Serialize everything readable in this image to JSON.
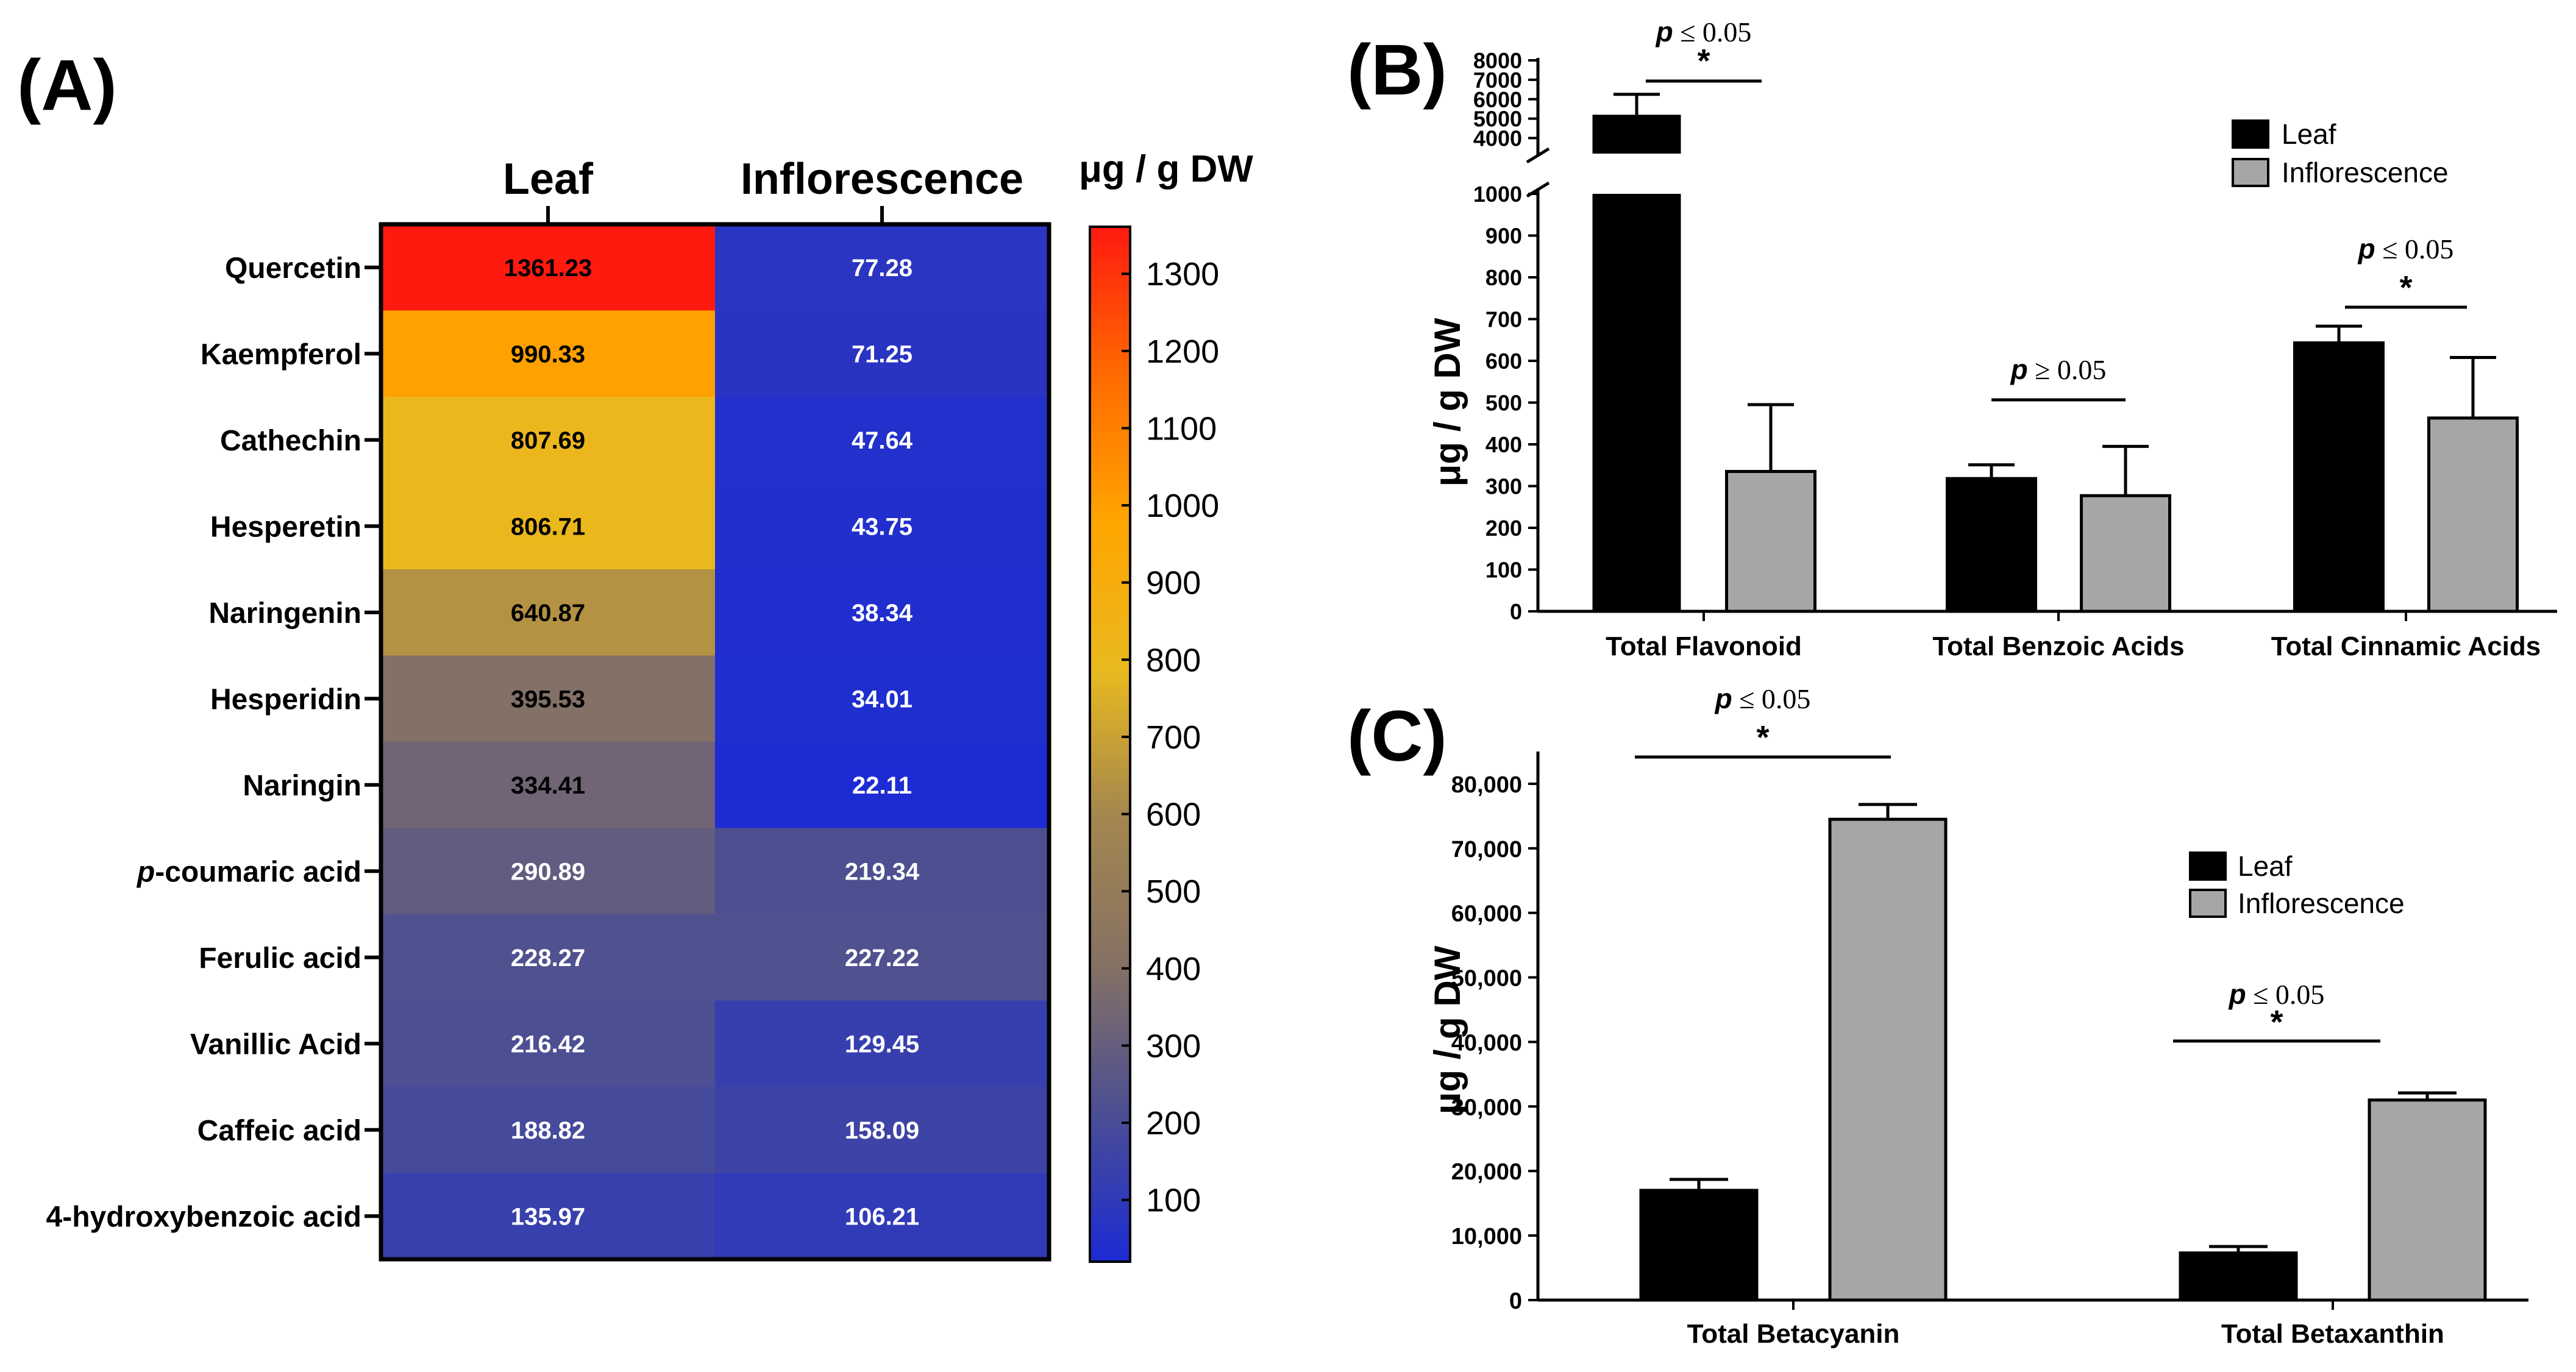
{
  "panel_labels": {
    "a": "(A)",
    "b": "(B)",
    "c": "(C)"
  },
  "chart_data": [
    {
      "type": "heatmap",
      "panel": "(A)",
      "columns": [
        "Leaf",
        "Inflorescence"
      ],
      "rows": [
        "Quercetin",
        "Kaempferol",
        "Cathechin",
        "Hesperetin",
        "Naringenin",
        "Hesperidin",
        "Naringin",
        "p-coumaric acid",
        "Ferulic acid",
        "Vanillic Acid",
        "Caffeic acid",
        "4-hydroxybenzoic acid"
      ],
      "row_label_parts": [
        {
          "prefix": "",
          "rest": "Quercetin"
        },
        {
          "prefix": "",
          "rest": "Kaempferol"
        },
        {
          "prefix": "",
          "rest": "Cathechin"
        },
        {
          "prefix": "",
          "rest": "Hesperetin"
        },
        {
          "prefix": "",
          "rest": "Naringenin"
        },
        {
          "prefix": "",
          "rest": "Hesperidin"
        },
        {
          "prefix": "",
          "rest": "Naringin"
        },
        {
          "prefix": "p",
          "rest": "-coumaric acid"
        },
        {
          "prefix": "",
          "rest": "Ferulic acid"
        },
        {
          "prefix": "",
          "rest": "Vanillic Acid"
        },
        {
          "prefix": "",
          "rest": "Caffeic acid"
        },
        {
          "prefix": "",
          "rest": "4-hydroxybenzoic acid"
        }
      ],
      "values": [
        [
          1361.23,
          77.28
        ],
        [
          990.33,
          71.25
        ],
        [
          807.69,
          47.64
        ],
        [
          806.71,
          43.75
        ],
        [
          640.87,
          38.34
        ],
        [
          395.53,
          34.01
        ],
        [
          334.41,
          22.11
        ],
        [
          290.89,
          219.34
        ],
        [
          228.27,
          227.22
        ],
        [
          216.42,
          129.45
        ],
        [
          188.82,
          158.09
        ],
        [
          135.97,
          106.21
        ]
      ],
      "value_labels": [
        [
          "1361.23",
          "77.28"
        ],
        [
          "990.33",
          "71.25"
        ],
        [
          "807.69",
          "47.64"
        ],
        [
          "806.71",
          "43.75"
        ],
        [
          "640.87",
          "38.34"
        ],
        [
          "395.53",
          "34.01"
        ],
        [
          "334.41",
          "22.11"
        ],
        [
          "290.89",
          "219.34"
        ],
        [
          "228.27",
          "227.22"
        ],
        [
          "216.42",
          "129.45"
        ],
        [
          "188.82",
          "158.09"
        ],
        [
          "135.97",
          "106.21"
        ]
      ],
      "colorbar": {
        "title": "μg / g DW",
        "range": [
          20,
          1361
        ],
        "ticks": [
          100,
          200,
          300,
          400,
          500,
          600,
          700,
          800,
          900,
          1000,
          1100,
          1200,
          1300
        ],
        "tick_labels": [
          "100",
          "200",
          "300",
          "400",
          "500",
          "600",
          "700",
          "800",
          "900",
          "1000",
          "1100",
          "1200",
          "1300"
        ],
        "colors": [
          "#1c2bd4",
          "#4b4e93",
          "#857164",
          "#a3864f",
          "#e8b91f",
          "#ffa500",
          "#ff6a00",
          "#ff1a10"
        ]
      }
    },
    {
      "type": "bar",
      "panel": "(B)",
      "categories": [
        "Total Flavonoid",
        "Total Benzoic Acids",
        "Total Cinnamic Acids"
      ],
      "series": [
        {
          "name": "Leaf",
          "color": "#000000",
          "values": [
            5200,
            318,
            643
          ],
          "errors": [
            1050,
            33,
            40
          ]
        },
        {
          "name": "Inflorescence",
          "color": "#a6a6a8",
          "values": [
            335,
            277,
            463
          ],
          "errors": [
            160,
            118,
            145
          ]
        }
      ],
      "ylabel": "μg / g DW",
      "broken_axis": true,
      "ylim_lower": [
        0,
        1000
      ],
      "ylim_upper": [
        3200,
        8000
      ],
      "yticks_lower": [
        0,
        100,
        200,
        300,
        400,
        500,
        600,
        700,
        800,
        900,
        1000
      ],
      "yticks_upper": [
        4000,
        5000,
        6000,
        7000,
        8000
      ],
      "ytick_labels_lower": [
        "0",
        "100",
        "200",
        "300",
        "400",
        "500",
        "600",
        "700",
        "800",
        "900",
        "1000"
      ],
      "ytick_labels_upper": [
        "4000",
        "5000",
        "6000",
        "7000",
        "8000"
      ],
      "legend": "top-right",
      "annotations": [
        {
          "p_symbol": "p",
          "p_text": "≤ 0.05",
          "star": "*"
        },
        {
          "p_symbol": "p",
          "p_text": "≥ 0.05",
          "star": ""
        },
        {
          "p_symbol": "p",
          "p_text": "≤ 0.05",
          "star": "*"
        }
      ]
    },
    {
      "type": "bar",
      "panel": "(C)",
      "categories": [
        "Total Betacyanin",
        "Total Betaxanthin"
      ],
      "series": [
        {
          "name": "Leaf",
          "color": "#000000",
          "values": [
            17000,
            7300
          ],
          "errors": [
            1700,
            1000
          ]
        },
        {
          "name": "Inflorescence",
          "color": "#a6a6a8",
          "values": [
            74500,
            31000
          ],
          "errors": [
            2300,
            1100
          ]
        }
      ],
      "ylabel": "μg / g DW",
      "ylim": [
        0,
        85000
      ],
      "yticks": [
        0,
        10000,
        20000,
        30000,
        40000,
        50000,
        60000,
        70000,
        80000
      ],
      "ytick_labels": [
        "0",
        "10,000",
        "20,000",
        "30,000",
        "40,000",
        "50,000",
        "60,000",
        "70,000",
        "80,000"
      ],
      "legend": "top-right",
      "annotations": [
        {
          "p_symbol": "p",
          "p_text": "≤ 0.05",
          "star": "*"
        },
        {
          "p_symbol": "p",
          "p_text": "≤ 0.05",
          "star": "*"
        }
      ]
    }
  ]
}
